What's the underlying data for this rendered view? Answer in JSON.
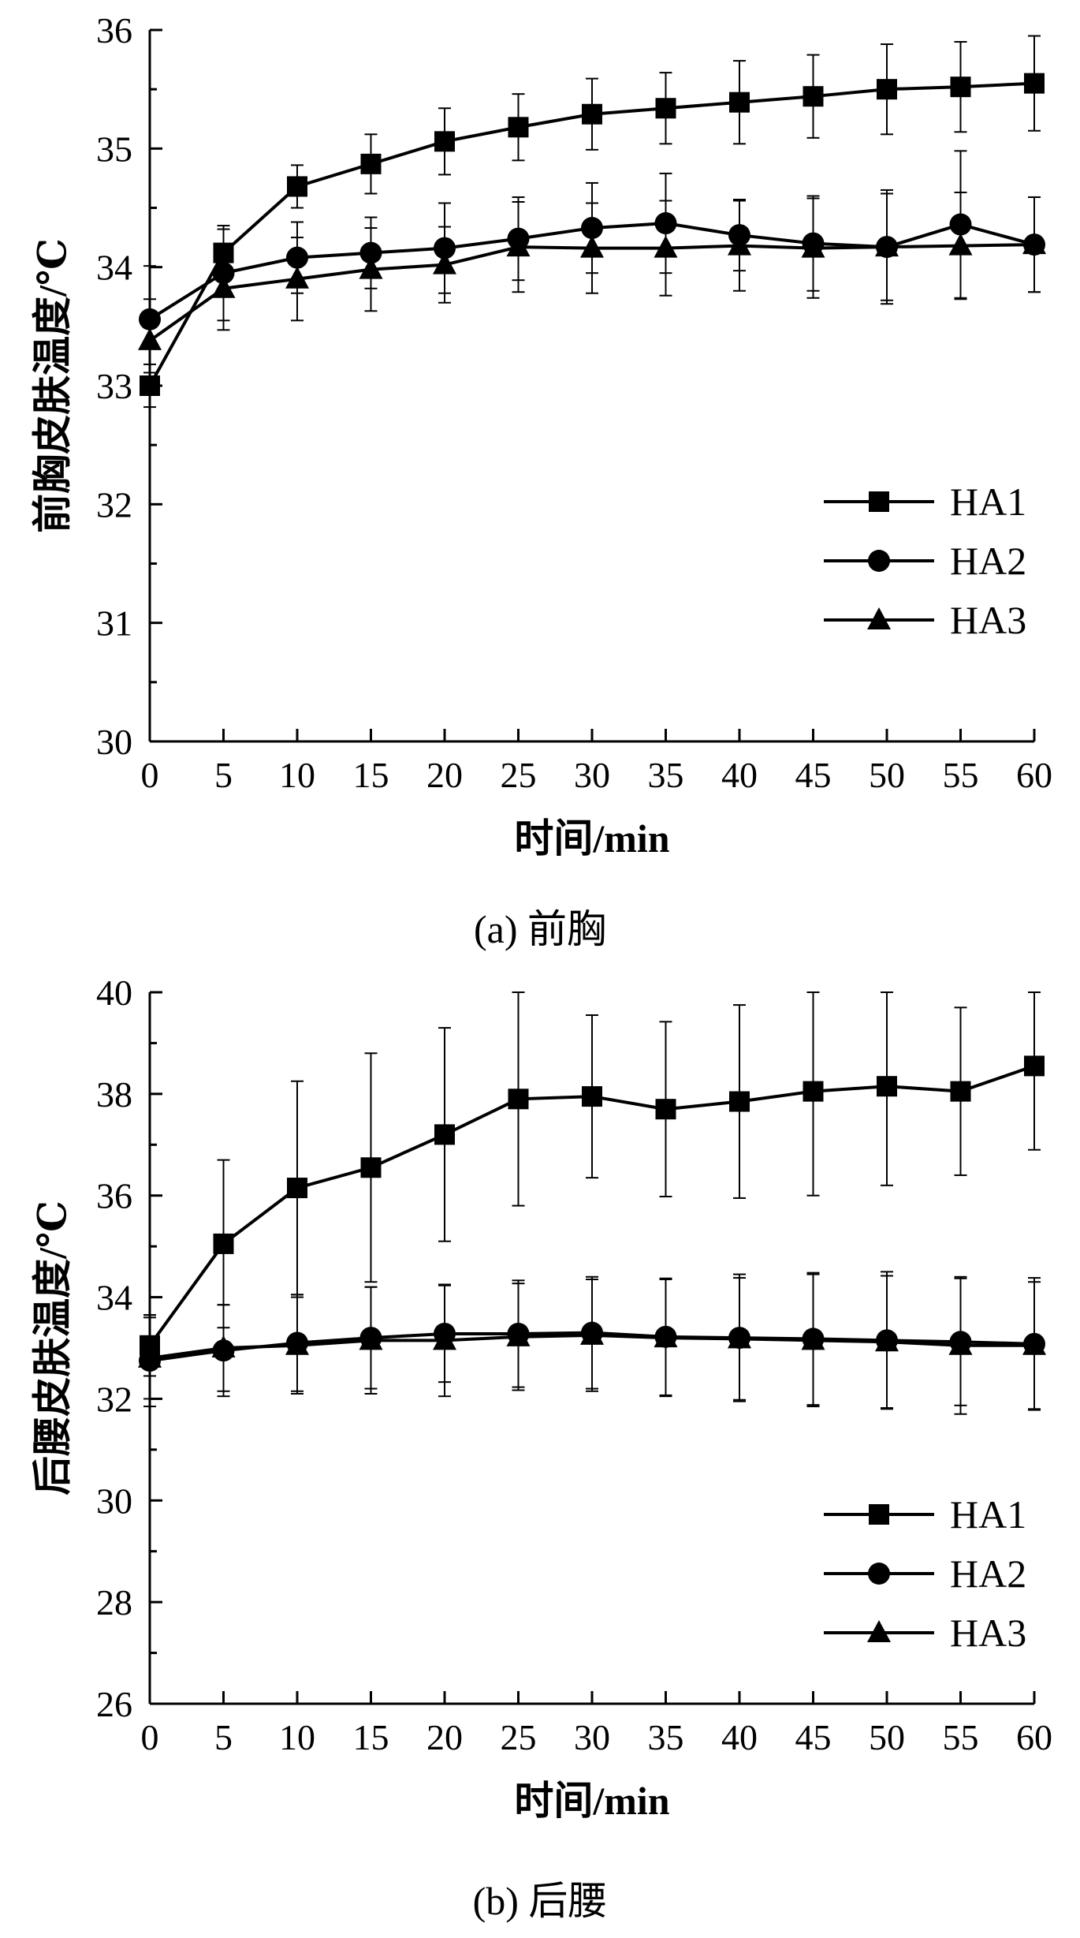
{
  "colors": {
    "axis": "#000000",
    "series": "#000000",
    "background": "#ffffff"
  },
  "chart_data": [
    {
      "type": "line",
      "panel_label": "(a)  前胸",
      "xlabel": "时间/min",
      "ylabel": "前胸皮肤温度/℃",
      "x": [
        0,
        5,
        10,
        15,
        20,
        25,
        30,
        35,
        40,
        45,
        50,
        55,
        60
      ],
      "xlim": [
        0,
        60
      ],
      "ylim": [
        30,
        36
      ],
      "yticks": [
        30,
        31,
        32,
        33,
        34,
        35,
        36
      ],
      "legend_position": "right",
      "grid": false,
      "series": [
        {
          "name": "HA1",
          "marker": "square",
          "values": [
            33.0,
            34.12,
            34.68,
            34.87,
            35.06,
            35.18,
            35.29,
            35.34,
            35.39,
            35.44,
            35.5,
            35.52,
            35.55
          ],
          "errors": [
            0.18,
            0.2,
            0.18,
            0.25,
            0.28,
            0.28,
            0.3,
            0.3,
            0.35,
            0.35,
            0.38,
            0.38,
            0.4
          ]
        },
        {
          "name": "HA2",
          "marker": "circle",
          "values": [
            33.56,
            33.95,
            34.08,
            34.12,
            34.16,
            34.24,
            34.33,
            34.37,
            34.27,
            34.2,
            34.17,
            34.36,
            34.19
          ],
          "errors": [
            0.45,
            0.4,
            0.3,
            0.3,
            0.38,
            0.35,
            0.38,
            0.42,
            0.3,
            0.4,
            0.48,
            0.62,
            0.4
          ]
        },
        {
          "name": "HA3",
          "marker": "triangle",
          "values": [
            33.38,
            33.82,
            33.9,
            33.98,
            34.02,
            34.17,
            34.16,
            34.16,
            34.18,
            34.16,
            34.17,
            34.18,
            34.19
          ],
          "errors": [
            0.35,
            0.35,
            0.35,
            0.35,
            0.32,
            0.38,
            0.38,
            0.4,
            0.38,
            0.42,
            0.45,
            0.45,
            0.4
          ]
        }
      ]
    },
    {
      "type": "line",
      "panel_label": "(b)  后腰",
      "xlabel": "时间/min",
      "ylabel": "后腰皮肤温度/℃",
      "x": [
        0,
        5,
        10,
        15,
        20,
        25,
        30,
        35,
        40,
        45,
        50,
        55,
        60
      ],
      "xlim": [
        0,
        60
      ],
      "ylim": [
        26,
        40
      ],
      "yticks": [
        26,
        28,
        30,
        32,
        34,
        36,
        38,
        40
      ],
      "legend_position": "bottom-right",
      "grid": false,
      "series": [
        {
          "name": "HA1",
          "marker": "square",
          "values": [
            33.05,
            35.05,
            36.15,
            36.55,
            37.2,
            37.9,
            37.95,
            37.7,
            37.85,
            38.05,
            38.15,
            38.05,
            38.55
          ],
          "errors": [
            0.6,
            1.65,
            2.1,
            2.25,
            2.1,
            2.1,
            1.6,
            1.72,
            1.9,
            2.05,
            1.95,
            1.65,
            1.65
          ]
        },
        {
          "name": "HA2",
          "marker": "circle",
          "values": [
            32.75,
            32.95,
            33.1,
            33.2,
            33.28,
            33.28,
            33.3,
            33.22,
            33.2,
            33.18,
            33.15,
            33.12,
            33.08
          ],
          "errors": [
            0.9,
            0.9,
            0.95,
            1.0,
            0.95,
            1.05,
            1.1,
            1.15,
            1.25,
            1.3,
            1.35,
            1.25,
            1.3
          ]
        },
        {
          "name": "HA3",
          "marker": "triangle",
          "values": [
            32.8,
            33.0,
            33.05,
            33.15,
            33.15,
            33.22,
            33.25,
            33.2,
            33.18,
            33.15,
            33.12,
            33.05,
            33.05
          ],
          "errors": [
            0.8,
            0.85,
            0.95,
            1.05,
            1.1,
            1.05,
            1.1,
            1.15,
            1.2,
            1.3,
            1.3,
            1.35,
            1.25
          ]
        }
      ]
    }
  ]
}
